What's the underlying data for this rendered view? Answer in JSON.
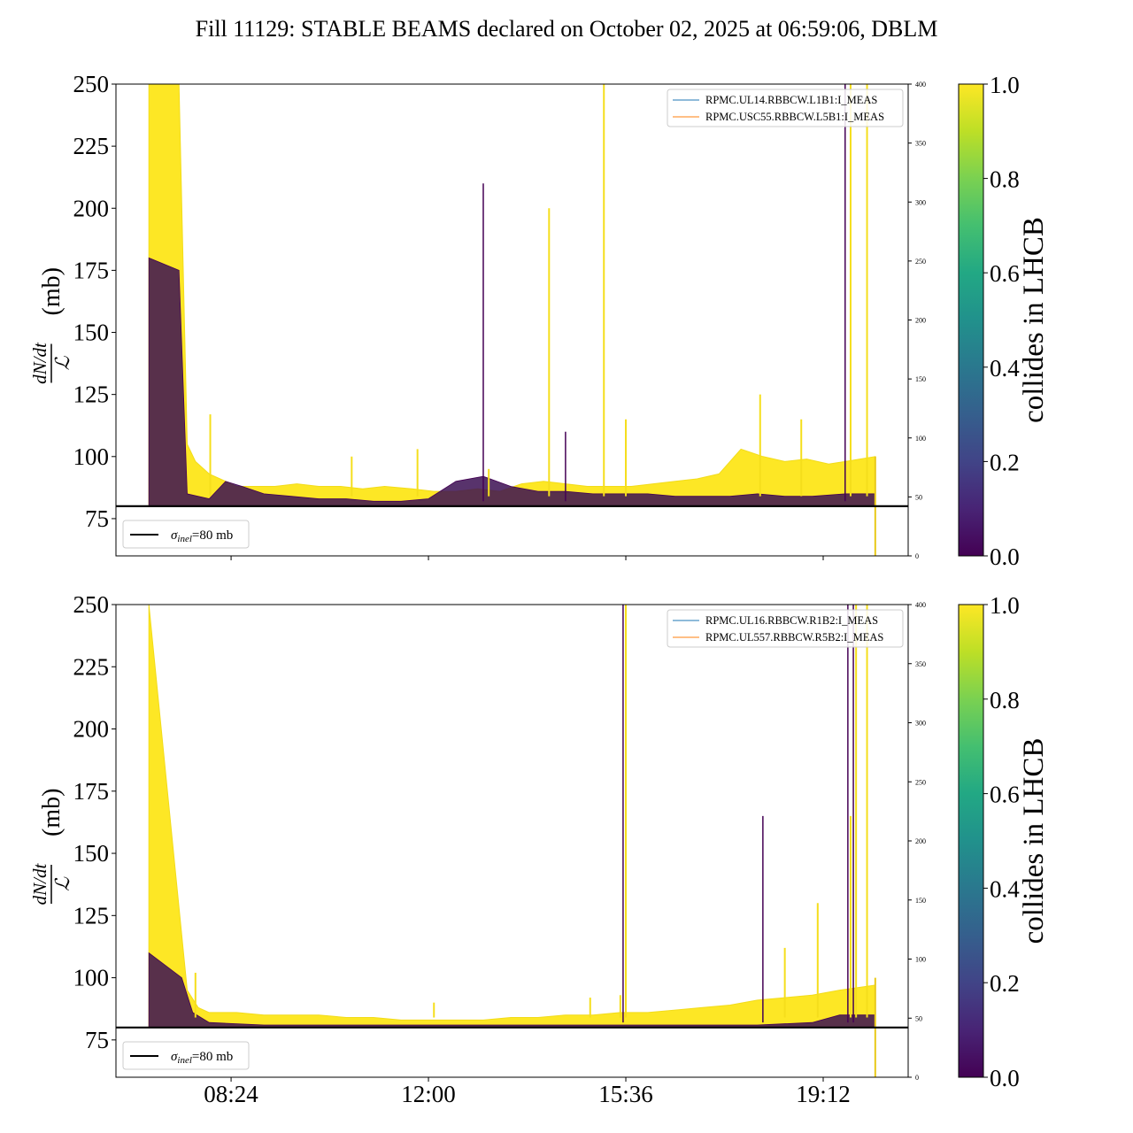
{
  "title": "Fill 11129: STABLE BEAMS declared on October 02, 2025 at 06:59:06, DBLM",
  "chart_data": [
    {
      "type": "line",
      "ylabel_numerator": "dN/dt",
      "ylabel_denominator": "ℒ",
      "ylabel_unit": "(mb)",
      "ylim": [
        60,
        250
      ],
      "yticks": [
        75,
        100,
        125,
        150,
        175,
        200,
        225,
        250
      ],
      "y2lim": [
        0,
        400
      ],
      "y2ticks": [
        0,
        50,
        100,
        150,
        200,
        250,
        300,
        350,
        400
      ],
      "xticks": [],
      "legend_position": "top-right",
      "series_legend": [
        {
          "name": "RPMC.UL14.RBBCW.L1B1:I_MEAS",
          "color": "#1f77b4"
        },
        {
          "name": "RPMC.USC55.RBBCW.L5B1:I_MEAS",
          "color": "#ff7f0e"
        }
      ],
      "reference_line": {
        "value": 80,
        "label_sym": "σ",
        "label_sub": "inel",
        "label_val": "=80 mb"
      },
      "colorbar": {
        "label": "collides in LHCB",
        "ticks": [
          "0.0",
          "0.2",
          "0.4",
          "0.6",
          "0.8",
          "1.0"
        ],
        "colormap": "viridis"
      },
      "envelope_yellow": {
        "x": [
          6.9,
          7.45,
          7.6,
          7.75,
          8.0,
          8.3,
          8.5,
          8.8,
          9.2,
          9.6,
          10.0,
          10.4,
          10.8,
          11.2,
          11.7,
          12.1,
          12.5,
          12.9,
          13.3,
          13.7,
          14.1,
          14.5,
          14.9,
          15.3,
          15.7,
          16.1,
          16.5,
          16.9,
          17.3,
          17.7,
          18.1,
          18.5,
          18.9,
          19.3,
          19.6,
          20.15
        ],
        "y": [
          250,
          250,
          105,
          98,
          93,
          90,
          88,
          88,
          88,
          89,
          88,
          88,
          87,
          88,
          87,
          86,
          86,
          87,
          86,
          89,
          90,
          89,
          88,
          88,
          88,
          89,
          90,
          91,
          93,
          103,
          100,
          98,
          99,
          97,
          98,
          100
        ]
      },
      "envelope_dark": {
        "x": [
          6.9,
          7.45,
          7.6,
          8.0,
          8.3,
          8.6,
          9.0,
          9.5,
          10.0,
          10.5,
          11.0,
          11.5,
          12.0,
          12.5,
          13.0,
          13.5,
          14.0,
          14.5,
          15.0,
          15.5,
          16.0,
          16.5,
          17.0,
          17.5,
          18.0,
          18.5,
          19.0,
          19.6,
          20.15
        ],
        "y": [
          180,
          175,
          85,
          83,
          90,
          88,
          85,
          84,
          83,
          83,
          82,
          82,
          83,
          90,
          92,
          88,
          86,
          86,
          85,
          85,
          85,
          84,
          84,
          84,
          85,
          84,
          84,
          85,
          85
        ]
      },
      "spikes_yellow": [
        [
          8.02,
          117
        ],
        [
          10.6,
          100
        ],
        [
          11.8,
          103
        ],
        [
          13.1,
          95
        ],
        [
          14.2,
          200
        ],
        [
          15.2,
          250
        ],
        [
          15.6,
          115
        ],
        [
          18.05,
          125
        ],
        [
          18.8,
          115
        ],
        [
          19.7,
          250
        ],
        [
          20.0,
          250
        ]
      ],
      "spikes_dark": [
        [
          13.0,
          210
        ],
        [
          14.5,
          110
        ],
        [
          19.6,
          250
        ]
      ]
    },
    {
      "type": "line",
      "ylabel_numerator": "dN/dt",
      "ylabel_denominator": "ℒ",
      "ylabel_unit": "(mb)",
      "ylim": [
        60,
        250
      ],
      "yticks": [
        75,
        100,
        125,
        150,
        175,
        200,
        225,
        250
      ],
      "y2lim": [
        0,
        400
      ],
      "y2ticks": [
        0,
        50,
        100,
        150,
        200,
        250,
        300,
        350,
        400
      ],
      "xticks": [
        "08:24",
        "12:00",
        "15:36",
        "19:12"
      ],
      "xtick_hours": [
        8.4,
        12.0,
        15.6,
        19.2
      ],
      "xlim_hours": [
        6.3,
        20.75
      ],
      "legend_position": "top-right",
      "series_legend": [
        {
          "name": "RPMC.UL16.RBBCW.R1B2:I_MEAS",
          "color": "#1f77b4"
        },
        {
          "name": "RPMC.UL557.RBBCW.R5B2:I_MEAS",
          "color": "#ff7f0e"
        }
      ],
      "reference_line": {
        "value": 80,
        "label_sym": "σ",
        "label_sub": "inel",
        "label_val": "=80 mb"
      },
      "colorbar": {
        "label": "collides in LHCB",
        "ticks": [
          "0.0",
          "0.2",
          "0.4",
          "0.6",
          "0.8",
          "1.0"
        ],
        "colormap": "viridis"
      },
      "envelope_yellow": {
        "x": [
          6.9,
          7.6,
          7.8,
          8.0,
          8.5,
          9.0,
          9.5,
          10.0,
          10.5,
          11.0,
          11.5,
          12.0,
          12.5,
          13.0,
          13.5,
          14.0,
          14.5,
          15.0,
          15.5,
          16.0,
          16.5,
          17.0,
          17.5,
          18.0,
          18.5,
          19.0,
          19.5,
          20.15
        ],
        "y": [
          250,
          95,
          88,
          86,
          86,
          85,
          85,
          85,
          84,
          84,
          83,
          83,
          83,
          83,
          84,
          84,
          85,
          85,
          86,
          86,
          87,
          88,
          89,
          91,
          92,
          93,
          95,
          97
        ]
      },
      "envelope_dark": {
        "x": [
          6.9,
          7.5,
          7.7,
          8.0,
          9.0,
          10.0,
          11.0,
          12.0,
          13.0,
          14.0,
          15.0,
          16.0,
          17.0,
          18.0,
          19.0,
          19.5,
          20.15
        ],
        "y": [
          110,
          100,
          86,
          82,
          81,
          81,
          81,
          81,
          81,
          81,
          81,
          81,
          81,
          81,
          82,
          85,
          85
        ]
      },
      "spikes_yellow": [
        [
          7.75,
          102
        ],
        [
          12.1,
          90
        ],
        [
          14.95,
          92
        ],
        [
          15.5,
          93
        ],
        [
          15.6,
          250
        ],
        [
          18.5,
          112
        ],
        [
          19.1,
          130
        ],
        [
          19.7,
          165
        ],
        [
          19.8,
          250
        ],
        [
          20.0,
          250
        ]
      ],
      "spikes_dark": [
        [
          15.55,
          250
        ],
        [
          18.1,
          165
        ],
        [
          19.65,
          250
        ],
        [
          19.75,
          250
        ]
      ]
    }
  ]
}
